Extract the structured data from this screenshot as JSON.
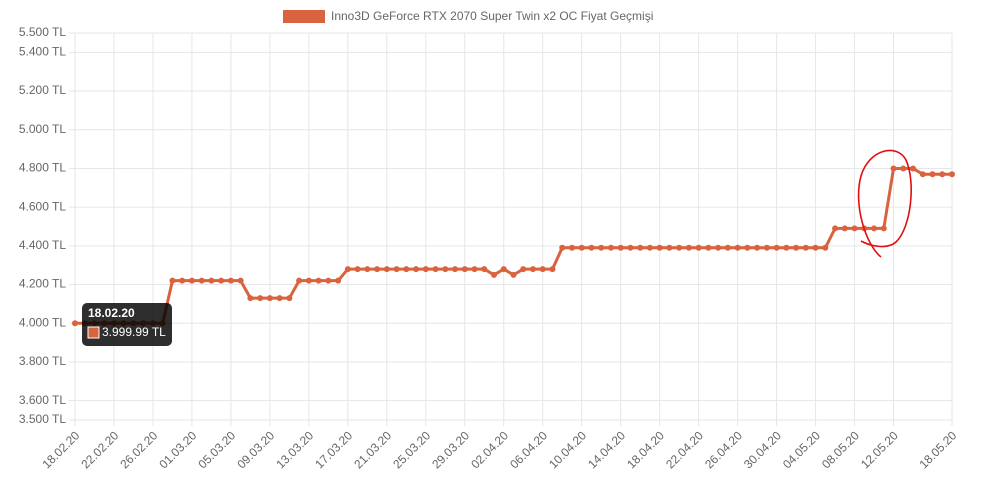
{
  "chart_data": {
    "type": "line",
    "categories": [
      "18.02.20",
      null,
      null,
      null,
      "22.02.20",
      null,
      null,
      null,
      "26.02.20",
      null,
      null,
      null,
      "01.03.20",
      null,
      null,
      null,
      "05.03.20",
      null,
      null,
      null,
      "09.03.20",
      null,
      null,
      null,
      "13.03.20",
      null,
      null,
      null,
      "17.03.20",
      null,
      null,
      null,
      "21.03.20",
      null,
      null,
      null,
      "25.03.20",
      null,
      null,
      null,
      "29.03.20",
      null,
      null,
      null,
      "02.04.20",
      null,
      null,
      null,
      "06.04.20",
      null,
      null,
      null,
      "10.04.20",
      null,
      null,
      null,
      "14.04.20",
      null,
      null,
      null,
      "18.04.20",
      null,
      null,
      null,
      "22.04.20",
      null,
      null,
      null,
      "26.04.20",
      null,
      null,
      null,
      "30.04.20",
      null,
      null,
      null,
      "04.05.20",
      null,
      null,
      null,
      "08.05.20",
      null,
      null,
      null,
      "12.05.20",
      null,
      null,
      null,
      null,
      null,
      "18.05.20"
    ],
    "series": [
      {
        "name": "Inno3D GeForce RTX 2070 Super Twin x2 OC Fiyat Geçmişi",
        "color": "#d9623f",
        "values": [
          3999.99,
          4000,
          4000,
          4000,
          4000,
          4000,
          4000,
          4000,
          4000,
          4000,
          4220,
          4220,
          4220,
          4220,
          4220,
          4220,
          4220,
          4220,
          4130,
          4130,
          4130,
          4130,
          4130,
          4220,
          4220,
          4220,
          4220,
          4220,
          4280,
          4280,
          4280,
          4280,
          4280,
          4280,
          4280,
          4280,
          4280,
          4280,
          4280,
          4280,
          4280,
          4280,
          4280,
          4250,
          4280,
          4250,
          4280,
          4280,
          4280,
          4280,
          4390,
          4390,
          4390,
          4390,
          4390,
          4390,
          4390,
          4390,
          4390,
          4390,
          4390,
          4390,
          4390,
          4390,
          4390,
          4390,
          4390,
          4390,
          4390,
          4390,
          4390,
          4390,
          4390,
          4390,
          4390,
          4390,
          4390,
          4390,
          4490,
          4490,
          4490,
          4490,
          4490,
          4490,
          4800,
          4800,
          4800,
          4770,
          4770,
          4770,
          4770
        ],
        "value_labels": [
          "3.999.99 TL",
          null,
          null,
          null,
          null,
          null,
          null,
          null,
          null,
          null,
          null,
          null,
          null,
          null,
          null,
          null,
          null,
          null,
          null,
          null,
          null,
          null,
          null,
          null,
          null,
          null,
          null,
          null,
          null,
          null,
          null,
          null,
          null,
          null,
          null,
          null,
          null,
          null,
          null,
          null,
          null,
          null,
          null,
          null,
          null,
          null,
          null,
          null,
          null,
          null,
          null,
          null,
          null,
          null,
          null,
          null,
          null,
          null,
          null,
          null,
          null,
          null,
          null,
          null,
          null,
          null,
          null,
          null,
          null,
          null,
          null,
          null,
          null,
          null,
          null,
          null,
          null,
          null,
          null,
          null,
          null,
          null,
          null,
          null,
          null,
          null,
          null,
          null,
          null,
          null,
          null
        ]
      }
    ],
    "ylim": [
      3500,
      5500
    ],
    "yticks": [
      {
        "value": 3500,
        "label": "3.500 TL"
      },
      {
        "value": 3600,
        "label": "3.600 TL"
      },
      {
        "value": 3800,
        "label": "3.800 TL"
      },
      {
        "value": 4000,
        "label": "4.000 TL"
      },
      {
        "value": 4200,
        "label": "4.200 TL"
      },
      {
        "value": 4400,
        "label": "4.400 TL"
      },
      {
        "value": 4600,
        "label": "4.600 TL"
      },
      {
        "value": 4800,
        "label": "4.800 TL"
      },
      {
        "value": 5000,
        "label": "5.000 TL"
      },
      {
        "value": 5200,
        "label": "5.200 TL"
      },
      {
        "value": 5400,
        "label": "5.400 TL"
      },
      {
        "value": 5500,
        "label": "5.500 TL"
      }
    ],
    "grid": true,
    "legend": "top"
  }
}
